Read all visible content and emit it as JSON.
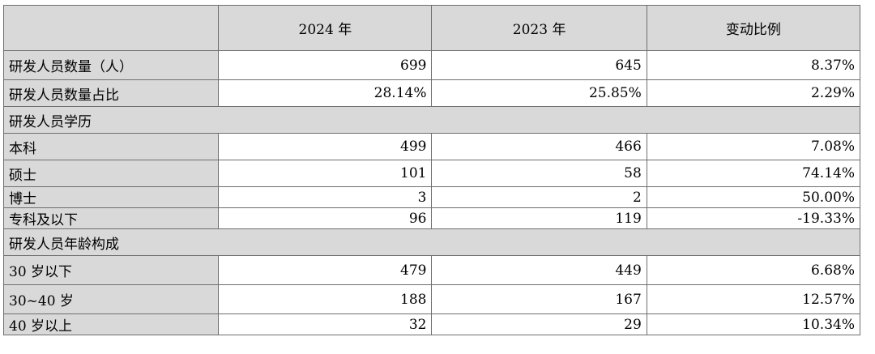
{
  "header": {
    "blank": "",
    "col_2024": "2024 年",
    "col_2023": "2023 年",
    "col_change": "变动比例"
  },
  "rows": [
    {
      "label": "研发人员数量（人）",
      "v2024": "699",
      "v2023": "645",
      "change": "8.37%"
    },
    {
      "label": "研发人员数量占比",
      "v2024": "28.14%",
      "v2023": "25.85%",
      "change": "2.29%"
    },
    {
      "section": "研发人员学历"
    },
    {
      "label": "本科",
      "v2024": "499",
      "v2023": "466",
      "change": "7.08%"
    },
    {
      "label": "硕士",
      "v2024": "101",
      "v2023": "58",
      "change": "74.14%"
    },
    {
      "label": "博士",
      "v2024": "3",
      "v2023": "2",
      "change": "50.00%"
    },
    {
      "label": "专科及以下",
      "v2024": "96",
      "v2023": "119",
      "change": "-19.33%"
    },
    {
      "section": "研发人员年龄构成"
    },
    {
      "label": "30 岁以下",
      "v2024": "479",
      "v2023": "449",
      "change": "6.68%"
    },
    {
      "label": "30~40 岁",
      "v2024": "188",
      "v2023": "167",
      "change": "12.57%"
    },
    {
      "label": "40 岁以上",
      "v2024": "32",
      "v2023": "29",
      "change": "10.34%"
    }
  ]
}
